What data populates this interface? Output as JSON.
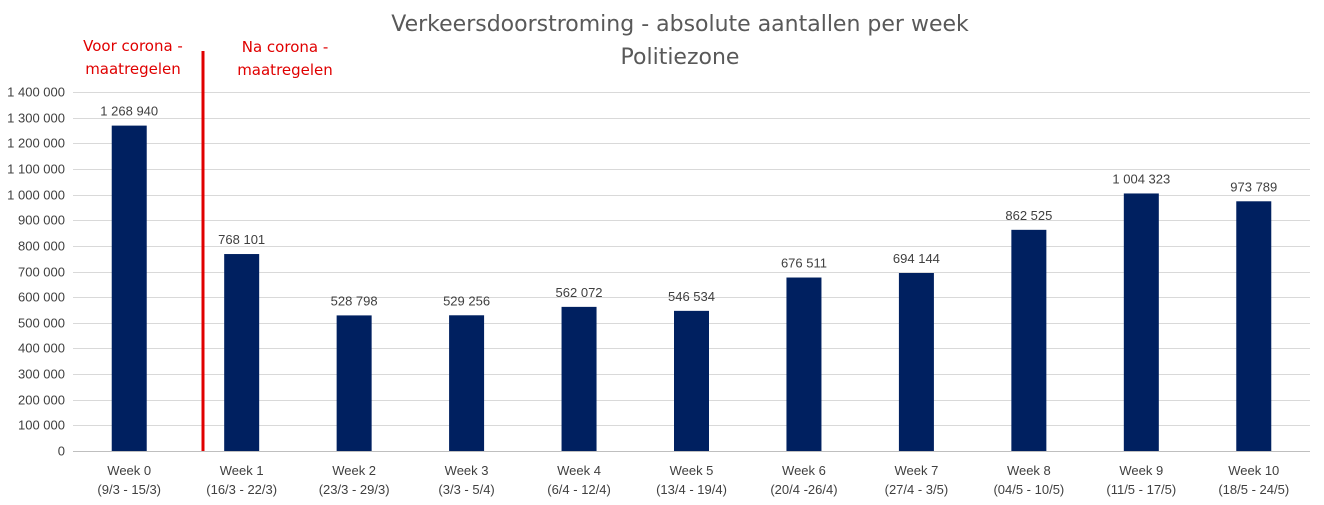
{
  "chart_data": {
    "type": "bar",
    "title": "Verkeersdoorstroming  - absolute aantallen per week",
    "subtitle": "Politiezone",
    "categories": [
      "Week 0",
      "Week 1",
      "Week 2",
      "Week 3",
      "Week 4",
      "Week 5",
      "Week 6",
      "Week 7",
      "Week 8",
      "Week 9",
      "Week 10"
    ],
    "category_dates": [
      "(9/3 - 15/3)",
      "(16/3 - 22/3)",
      "(23/3 - 29/3)",
      "(3/3 - 5/4)",
      "(6/4 - 12/4)",
      "(13/4 - 19/4)",
      "(20/4 -26/4)",
      "(27/4 - 3/5)",
      "(04/5 - 10/5)",
      "(11/5 - 17/5)",
      "(18/5 - 24/5)"
    ],
    "values": [
      1268940,
      768101,
      528798,
      529256,
      562072,
      546534,
      676511,
      694144,
      862525,
      1004323,
      973789
    ],
    "data_labels": [
      "1 268 940",
      "768 101",
      "528 798",
      "529 256",
      "562 072",
      "546 534",
      "676 511",
      "694 144",
      "862 525",
      "1 004 323",
      "973 789"
    ],
    "ylim": [
      0,
      1400000
    ],
    "yticks": [
      0,
      100000,
      200000,
      300000,
      400000,
      500000,
      600000,
      700000,
      800000,
      900000,
      1000000,
      1100000,
      1200000,
      1300000,
      1400000
    ],
    "ytick_labels": [
      "0",
      "100 000",
      "200 000",
      "300 000",
      "400 000",
      "500 000",
      "600 000",
      "700 000",
      "800 000",
      "900 000",
      "1 000 000",
      "1 100 000",
      "1 200 000",
      "1 300 000",
      "1 400 000"
    ],
    "grid": true,
    "bar_color": "#002060",
    "annotations": {
      "before": [
        "Voor corona -",
        "maatregelen"
      ],
      "after": [
        "Na corona -",
        "maatregelen"
      ],
      "divider_color": "#e00000"
    }
  }
}
